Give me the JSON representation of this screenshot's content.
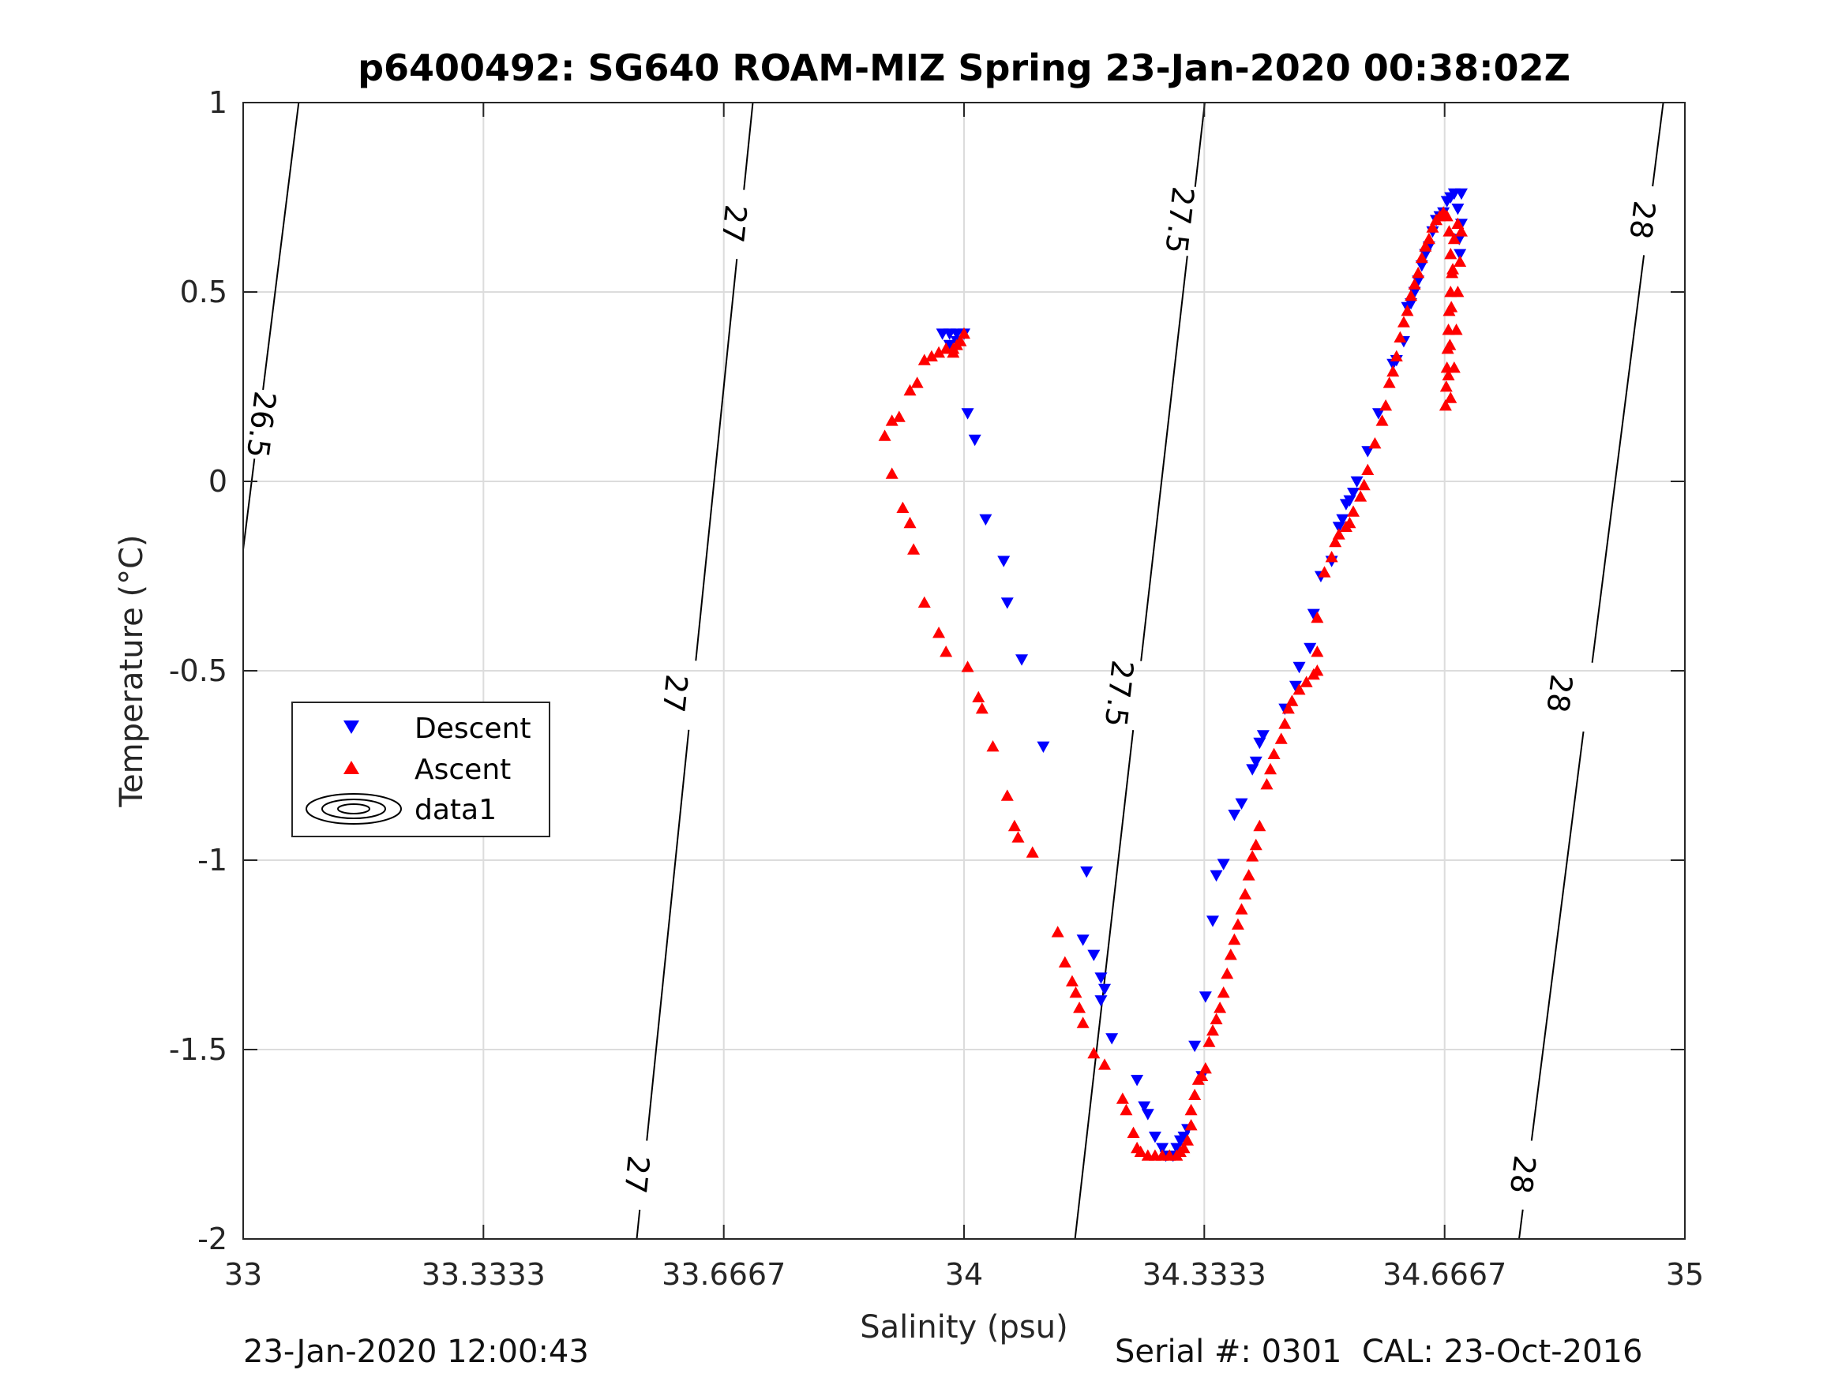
{
  "chart_data": {
    "type": "scatter",
    "title": "p6400492: SG640 ROAM-MIZ Spring 23-Jan-2020 00:38:02Z",
    "xlabel": "Salinity (psu)",
    "ylabel": "Temperature (°C)",
    "xlim": [
      33,
      35
    ],
    "ylim": [
      -2,
      1
    ],
    "xticks": [
      "33",
      "33.3333",
      "33.6667",
      "34",
      "34.3333",
      "34.6667",
      "35"
    ],
    "yticks": [
      "-2",
      "-1.5",
      "-1",
      "-0.5",
      "0",
      "0.5",
      "1"
    ],
    "grid": true,
    "legend": {
      "position": "left-middle",
      "entries": [
        "Descent",
        "Ascent",
        "data1"
      ]
    },
    "contours": [
      {
        "label": "26.5",
        "points": [
          [
            33.0,
            -0.18
          ],
          [
            33.077,
            1.0
          ]
        ],
        "labels_at": [
          [
            33.025,
            0.15
          ]
        ]
      },
      {
        "label": "27",
        "points": [
          [
            33.546,
            -2.0
          ],
          [
            33.707,
            1.0
          ]
        ],
        "labels_at": [
          [
            33.546,
            -1.83
          ],
          [
            33.599,
            -0.56
          ],
          [
            33.681,
            0.68
          ]
        ]
      },
      {
        "label": "27.5",
        "points": [
          [
            34.154,
            -2.0
          ],
          [
            34.334,
            1.0
          ]
        ],
        "labels_at": [
          [
            34.215,
            -0.56
          ],
          [
            34.299,
            0.69
          ]
        ]
      },
      {
        "label": "28",
        "points": [
          [
            34.77,
            -2.0
          ],
          [
            34.97,
            1.0
          ]
        ],
        "labels_at": [
          [
            34.775,
            -1.83
          ],
          [
            34.826,
            -0.56
          ],
          [
            34.941,
            0.69
          ]
        ]
      }
    ],
    "series": [
      {
        "name": "Descent",
        "marker": "triangle-down",
        "color": "#0000ff",
        "points": [
          [
            33.97,
            0.39
          ],
          [
            33.98,
            0.39
          ],
          [
            33.99,
            0.39
          ],
          [
            34.0,
            0.39
          ],
          [
            33.99,
            0.37
          ],
          [
            33.98,
            0.36
          ],
          [
            34.005,
            0.18
          ],
          [
            34.015,
            0.11
          ],
          [
            34.03,
            -0.1
          ],
          [
            34.055,
            -0.21
          ],
          [
            34.06,
            -0.32
          ],
          [
            34.08,
            -0.47
          ],
          [
            34.11,
            -0.7
          ],
          [
            34.17,
            -1.03
          ],
          [
            34.165,
            -1.21
          ],
          [
            34.18,
            -1.25
          ],
          [
            34.19,
            -1.31
          ],
          [
            34.195,
            -1.34
          ],
          [
            34.19,
            -1.37
          ],
          [
            34.205,
            -1.47
          ],
          [
            34.24,
            -1.58
          ],
          [
            34.25,
            -1.65
          ],
          [
            34.255,
            -1.67
          ],
          [
            34.265,
            -1.73
          ],
          [
            34.275,
            -1.76
          ],
          [
            34.28,
            -1.78
          ],
          [
            34.29,
            -1.78
          ],
          [
            34.295,
            -1.76
          ],
          [
            34.3,
            -1.74
          ],
          [
            34.305,
            -1.73
          ],
          [
            34.31,
            -1.71
          ],
          [
            34.33,
            -1.57
          ],
          [
            34.32,
            -1.49
          ],
          [
            34.335,
            -1.36
          ],
          [
            34.345,
            -1.16
          ],
          [
            34.35,
            -1.04
          ],
          [
            34.36,
            -1.01
          ],
          [
            34.375,
            -0.88
          ],
          [
            34.385,
            -0.85
          ],
          [
            34.4,
            -0.76
          ],
          [
            34.405,
            -0.74
          ],
          [
            34.41,
            -0.69
          ],
          [
            34.415,
            -0.67
          ],
          [
            34.445,
            -0.6
          ],
          [
            34.46,
            -0.54
          ],
          [
            34.465,
            -0.49
          ],
          [
            34.48,
            -0.44
          ],
          [
            34.485,
            -0.35
          ],
          [
            34.495,
            -0.25
          ],
          [
            34.51,
            -0.21
          ],
          [
            34.52,
            -0.12
          ],
          [
            34.525,
            -0.1
          ],
          [
            34.53,
            -0.06
          ],
          [
            34.535,
            -0.05
          ],
          [
            34.54,
            -0.03
          ],
          [
            34.545,
            0.0
          ],
          [
            34.56,
            0.08
          ],
          [
            34.575,
            0.18
          ],
          [
            34.595,
            0.31
          ],
          [
            34.6,
            0.32
          ],
          [
            34.61,
            0.37
          ],
          [
            34.615,
            0.46
          ],
          [
            34.62,
            0.47
          ],
          [
            34.625,
            0.5
          ],
          [
            34.63,
            0.53
          ],
          [
            34.635,
            0.57
          ],
          [
            34.64,
            0.6
          ],
          [
            34.645,
            0.62
          ],
          [
            34.65,
            0.66
          ],
          [
            34.655,
            0.69
          ],
          [
            34.66,
            0.7
          ],
          [
            34.665,
            0.71
          ],
          [
            34.67,
            0.74
          ],
          [
            34.675,
            0.75
          ],
          [
            34.68,
            0.76
          ],
          [
            34.69,
            0.76
          ],
          [
            34.685,
            0.72
          ],
          [
            34.69,
            0.68
          ],
          [
            34.687,
            0.64
          ],
          [
            34.688,
            0.6
          ]
        ]
      },
      {
        "name": "Ascent",
        "marker": "triangle-up",
        "color": "#ff0000",
        "points": [
          [
            33.89,
            0.12
          ],
          [
            33.9,
            0.16
          ],
          [
            33.91,
            0.17
          ],
          [
            33.925,
            0.24
          ],
          [
            33.935,
            0.26
          ],
          [
            33.945,
            0.32
          ],
          [
            33.955,
            0.33
          ],
          [
            33.965,
            0.34
          ],
          [
            33.975,
            0.35
          ],
          [
            33.985,
            0.35
          ],
          [
            33.995,
            0.37
          ],
          [
            34.0,
            0.39
          ],
          [
            33.99,
            0.36
          ],
          [
            33.985,
            0.34
          ],
          [
            33.9,
            0.02
          ],
          [
            33.915,
            -0.07
          ],
          [
            33.925,
            -0.11
          ],
          [
            33.93,
            -0.18
          ],
          [
            33.945,
            -0.32
          ],
          [
            33.965,
            -0.4
          ],
          [
            33.975,
            -0.45
          ],
          [
            34.005,
            -0.49
          ],
          [
            34.02,
            -0.57
          ],
          [
            34.025,
            -0.6
          ],
          [
            34.04,
            -0.7
          ],
          [
            34.06,
            -0.83
          ],
          [
            34.07,
            -0.91
          ],
          [
            34.075,
            -0.94
          ],
          [
            34.095,
            -0.98
          ],
          [
            34.13,
            -1.19
          ],
          [
            34.14,
            -1.27
          ],
          [
            34.15,
            -1.32
          ],
          [
            34.155,
            -1.35
          ],
          [
            34.16,
            -1.39
          ],
          [
            34.165,
            -1.43
          ],
          [
            34.18,
            -1.51
          ],
          [
            34.195,
            -1.54
          ],
          [
            34.22,
            -1.63
          ],
          [
            34.225,
            -1.66
          ],
          [
            34.235,
            -1.72
          ],
          [
            34.24,
            -1.76
          ],
          [
            34.245,
            -1.77
          ],
          [
            34.255,
            -1.78
          ],
          [
            34.265,
            -1.78
          ],
          [
            34.275,
            -1.78
          ],
          [
            34.285,
            -1.78
          ],
          [
            34.295,
            -1.78
          ],
          [
            34.3,
            -1.77
          ],
          [
            34.305,
            -1.76
          ],
          [
            34.31,
            -1.74
          ],
          [
            34.315,
            -1.7
          ],
          [
            34.315,
            -1.66
          ],
          [
            34.32,
            -1.62
          ],
          [
            34.325,
            -1.58
          ],
          [
            34.33,
            -1.57
          ],
          [
            34.335,
            -1.55
          ],
          [
            34.34,
            -1.48
          ],
          [
            34.345,
            -1.45
          ],
          [
            34.35,
            -1.42
          ],
          [
            34.355,
            -1.39
          ],
          [
            34.36,
            -1.35
          ],
          [
            34.365,
            -1.3
          ],
          [
            34.37,
            -1.25
          ],
          [
            34.375,
            -1.21
          ],
          [
            34.38,
            -1.17
          ],
          [
            34.385,
            -1.13
          ],
          [
            34.39,
            -1.09
          ],
          [
            34.395,
            -1.04
          ],
          [
            34.4,
            -0.99
          ],
          [
            34.405,
            -0.96
          ],
          [
            34.41,
            -0.91
          ],
          [
            34.42,
            -0.8
          ],
          [
            34.425,
            -0.76
          ],
          [
            34.43,
            -0.72
          ],
          [
            34.44,
            -0.68
          ],
          [
            34.445,
            -0.64
          ],
          [
            34.45,
            -0.6
          ],
          [
            34.455,
            -0.58
          ],
          [
            34.465,
            -0.55
          ],
          [
            34.475,
            -0.53
          ],
          [
            34.485,
            -0.51
          ],
          [
            34.49,
            -0.5
          ],
          [
            34.49,
            -0.45
          ],
          [
            34.49,
            -0.36
          ],
          [
            34.5,
            -0.24
          ],
          [
            34.51,
            -0.2
          ],
          [
            34.515,
            -0.16
          ],
          [
            34.52,
            -0.14
          ],
          [
            34.53,
            -0.12
          ],
          [
            34.535,
            -0.11
          ],
          [
            34.54,
            -0.08
          ],
          [
            34.55,
            -0.04
          ],
          [
            34.555,
            -0.01
          ],
          [
            34.56,
            0.03
          ],
          [
            34.57,
            0.1
          ],
          [
            34.58,
            0.16
          ],
          [
            34.585,
            0.2
          ],
          [
            34.59,
            0.26
          ],
          [
            34.595,
            0.29
          ],
          [
            34.6,
            0.33
          ],
          [
            34.605,
            0.38
          ],
          [
            34.61,
            0.42
          ],
          [
            34.615,
            0.45
          ],
          [
            34.62,
            0.49
          ],
          [
            34.625,
            0.52
          ],
          [
            34.63,
            0.55
          ],
          [
            34.635,
            0.59
          ],
          [
            34.64,
            0.62
          ],
          [
            34.645,
            0.64
          ],
          [
            34.65,
            0.67
          ],
          [
            34.655,
            0.69
          ],
          [
            34.66,
            0.7
          ],
          [
            34.665,
            0.71
          ],
          [
            34.67,
            0.7
          ],
          [
            34.673,
            0.66
          ],
          [
            34.675,
            0.6
          ],
          [
            34.677,
            0.55
          ],
          [
            34.675,
            0.5
          ],
          [
            34.673,
            0.45
          ],
          [
            34.672,
            0.4
          ],
          [
            34.671,
            0.35
          ],
          [
            34.67,
            0.3
          ],
          [
            34.669,
            0.25
          ],
          [
            34.668,
            0.2
          ],
          [
            34.675,
            0.22
          ],
          [
            34.68,
            0.3
          ],
          [
            34.683,
            0.4
          ],
          [
            34.685,
            0.5
          ],
          [
            34.688,
            0.58
          ],
          [
            34.69,
            0.66
          ],
          [
            34.685,
            0.68
          ],
          [
            34.68,
            0.64
          ],
          [
            34.678,
            0.56
          ],
          [
            34.676,
            0.46
          ],
          [
            34.674,
            0.36
          ],
          [
            34.672,
            0.28
          ]
        ]
      }
    ]
  },
  "footer": {
    "timestamp": "23-Jan-2020 12:00:43",
    "serial": "Serial #: 0301  CAL: 23-Oct-2016"
  }
}
